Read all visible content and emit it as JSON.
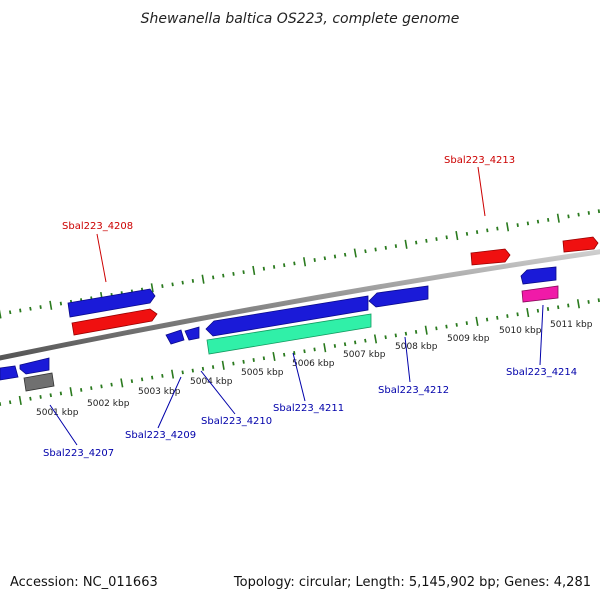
{
  "title": "Shewanella baltica OS223, complete genome",
  "footer": {
    "accession": "Accession: NC_011663",
    "summary": "Topology: circular; Length: 5,145,902 bp; Genes: 4,281"
  },
  "colors": {
    "backbone": "#8a8a8a",
    "tick": "#2a7a1e",
    "blue_gene": "#1a1ad8",
    "red_gene": "#f01010",
    "green_gene": "#30f0a8",
    "pink_gene": "#f01aa8",
    "gray_gene": "#707070",
    "label_red": "#cc0000",
    "label_blue": "#0000aa"
  },
  "tick_labels": [
    "5001 kbp",
    "5002 kbp",
    "5003 kbp",
    "5004 kbp",
    "5005 kbp",
    "5006 kbp",
    "5007 kbp",
    "5008 kbp",
    "5009 kbp",
    "5010 kbp",
    "5011 kbp"
  ],
  "gene_labels": {
    "g4207": "Sbal223_4207",
    "g4208": "Sbal223_4208",
    "g4209": "Sbal223_4209",
    "g4210": "Sbal223_4210",
    "g4211": "Sbal223_4211",
    "g4212": "Sbal223_4212",
    "g4213": "Sbal223_4213",
    "g4214": "Sbal223_4214"
  }
}
